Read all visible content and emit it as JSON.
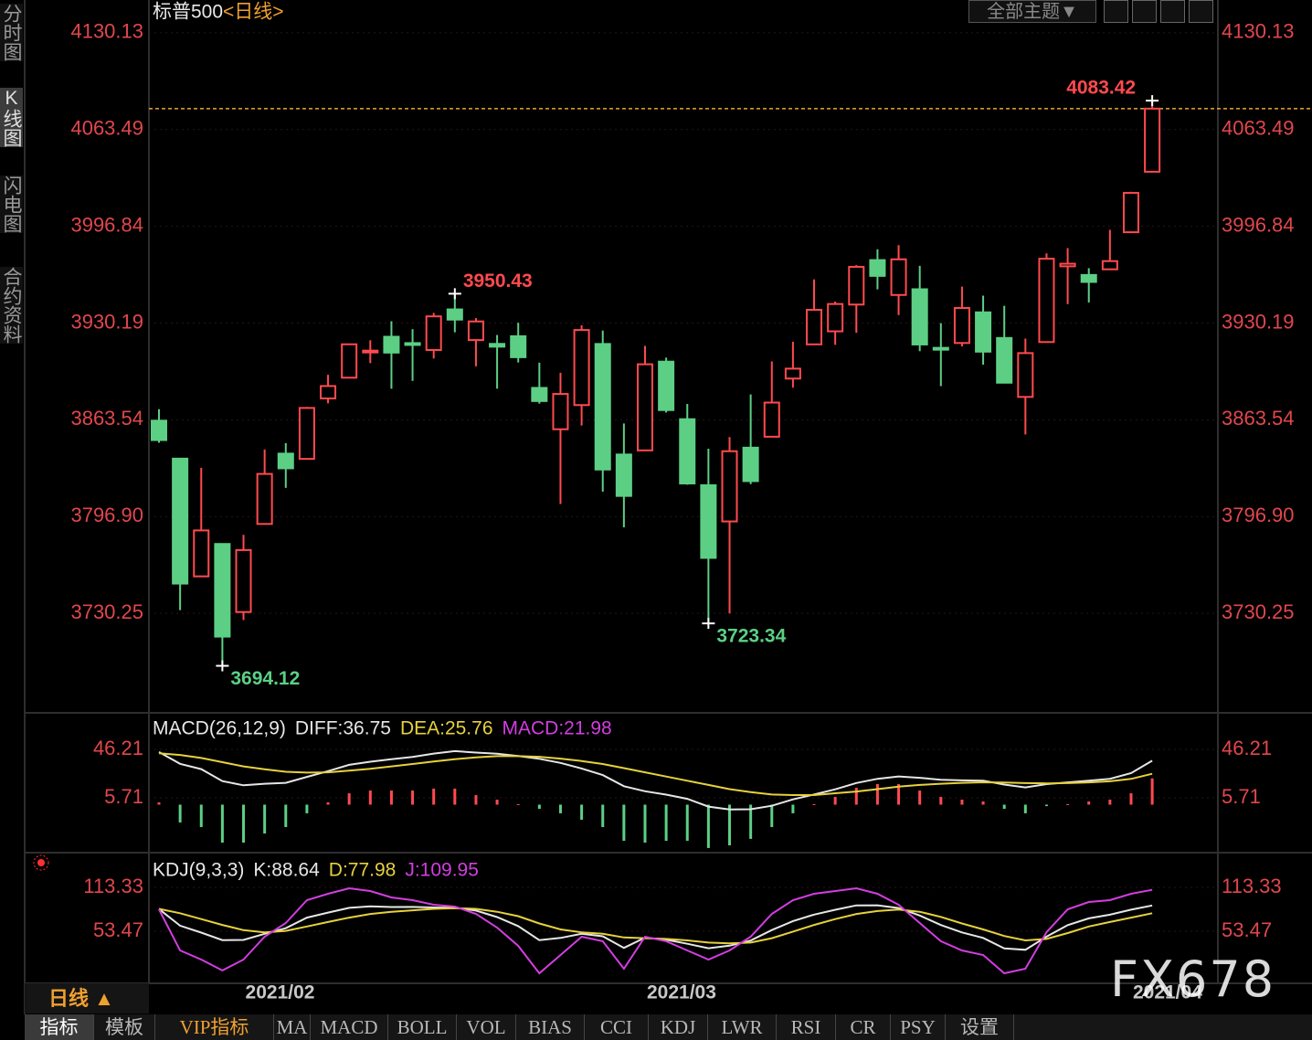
{
  "ui": {
    "side_tabs": [
      "分时图",
      "K线图",
      "闪电图",
      "合约资料"
    ],
    "selected_side_tab": 1,
    "theme_button": "全部主题▼",
    "period": "日线 ▲",
    "bottom_tabs": [
      "指标",
      "模板",
      "VIP指标",
      "MA",
      "MACD",
      "BOLL",
      "VOL",
      "BIAS",
      "CCI",
      "KDJ",
      "LWR",
      "RSI",
      "CR",
      "PSY",
      "设置"
    ],
    "selected_bottom_tab": 0,
    "watermark": "FX678"
  },
  "chart_data": [
    {
      "type": "candlestick",
      "title": "标普500",
      "subtitle": "<日线>",
      "categories": [
        null,
        null,
        null,
        null,
        "2021/02",
        null,
        null,
        null,
        null,
        null,
        null,
        null,
        null,
        null,
        null,
        null,
        null,
        null,
        null,
        null,
        null,
        null,
        null,
        "2021/03",
        null,
        null,
        null,
        null,
        null,
        null,
        null,
        null,
        null,
        null,
        null,
        null,
        null,
        null,
        null,
        null,
        null,
        null,
        null,
        null,
        null,
        null,
        "2021/04",
        null
      ],
      "open": [
        3862.96,
        3836.83,
        3755.75,
        3778.05,
        3731.17,
        3791.84,
        3840.27,
        3836.66,
        3878.3,
        3892.59,
        3910.49,
        3920.78,
        3916.4,
        3911.65,
        3939.61,
        3918.5,
        3915.86,
        3921.16,
        3885.55,
        3857.07,
        3873.71,
        3915.8,
        3839.66,
        3842.51,
        3903.64,
        3863.99,
        3818.53,
        3793.58,
        3844.39,
        3851.93,
        3891.99,
        3915.54,
        3924.52,
        3942.96,
        3973.59,
        3949.57,
        3953.5,
        3913.14,
        3916.48,
        3937.6,
        3919.93,
        3879.34,
        3917.12,
        3969.31,
        3963.34,
        3967.25,
        3992.78,
        4034.44
      ],
      "high": [
        3870.9,
        3836.83,
        3830.5,
        3778.05,
        3784.32,
        3843.09,
        3847.51,
        3872.42,
        3894.56,
        3915.77,
        3918.35,
        3931.5,
        3925.99,
        3937.23,
        3950.43,
        3933.61,
        3921.98,
        3930.41,
        3902.92,
        3895.98,
        3928.65,
        3925.02,
        3861.08,
        3914.5,
        3906.41,
        3874.47,
        3843.67,
        3851.69,
        3881.06,
        3903.76,
        3917.35,
        3960.27,
        3944.99,
        3970.08,
        3981.04,
        3983.87,
        3969.62,
        3930.12,
        3955.31,
        3949.13,
        3942.08,
        3919.54,
        3978.19,
        3981.83,
        3968.01,
        3994.41,
        4020.63,
        4083.42
      ],
      "low": [
        3847.78,
        3732.48,
        3755.75,
        3694.12,
        3725.62,
        3791.84,
        3816.68,
        3836.66,
        3874.93,
        3892.59,
        3902.64,
        3884.94,
        3890.39,
        3905.78,
        3923.85,
        3900.43,
        3885.03,
        3903.07,
        3874.71,
        3805.59,
        3859.6,
        3814.04,
        3789.54,
        3842.51,
        3868.57,
        3818.86,
        3723.34,
        3730.19,
        3819.25,
        3851.93,
        3885.73,
        3915.54,
        3915.21,
        3923.54,
        3953.44,
        3935.74,
        3910.86,
        3886.75,
        3914.16,
        3901.57,
        3888.87,
        3853.5,
        3917.12,
        3943.25,
        3944.35,
        3966.98,
        3992.78,
        4034.44
      ],
      "close": [
        3849.62,
        3750.77,
        3787.38,
        3714.24,
        3773.86,
        3826.31,
        3830.17,
        3871.74,
        3886.83,
        3915.59,
        3911.23,
        3909.88,
        3916.38,
        3934.83,
        3932.59,
        3931.33,
        3913.97,
        3906.71,
        3876.5,
        3881.37,
        3925.43,
        3829.34,
        3811.15,
        3901.82,
        3870.29,
        3819.72,
        3768.47,
        3841.94,
        3821.35,
        3875.44,
        3898.81,
        3939.34,
        3943.34,
        3968.94,
        3962.71,
        3974.12,
        3915.46,
        3913.1,
        3940.59,
        3910.52,
        3889.14,
        3909.52,
        3974.54,
        3971.09,
        3958.55,
        3972.89,
        4019.87,
        4077.91
      ],
      "up_color": "#ff4a4f",
      "down_color": "#5ccf85",
      "last_close_color": "#e8a33d",
      "ylim": [
        3663,
        4137
      ],
      "yticks": [
        4130.13,
        4063.49,
        3996.84,
        3930.19,
        3863.54,
        {
          "value": 3796.9,
          "label": "3796.90"
        },
        3730.25
      ],
      "grid": true,
      "annotations": [
        {
          "x": 47,
          "y": 4083.42,
          "color": "#ff4a4f",
          "position": "above"
        },
        {
          "x": 14,
          "y": 3950.43,
          "color": "#ff4a4f",
          "position": "above"
        },
        {
          "x": 26,
          "y": 3723.34,
          "color": "#5ccf85",
          "position": "below"
        },
        {
          "x": 3,
          "y": 3694.12,
          "color": "#5ccf85",
          "position": "below"
        }
      ]
    },
    {
      "type": "line",
      "title": "MACD(26,12,9)",
      "up_color": "#ff4a4f",
      "down_color": "#5ccf85",
      "ylim": [
        -37.8,
        72.9
      ],
      "yticks": [
        46.21,
        5.71
      ],
      "grid": true,
      "series": [
        {
          "name": "DIFF:36.75",
          "color": "#e6e6e6",
          "values": [
            44,
            34.1,
            29.7,
            19.7,
            16.2,
            17.5,
            18.2,
            23.2,
            28,
            33.3,
            35.9,
            37.9,
            39.9,
            42.7,
            44.7,
            43.5,
            42.6,
            40.7,
            38.3,
            34.9,
            30.2,
            24.7,
            15.4,
            11.2,
            8.4,
            4.9,
            -1.6,
            -4,
            -3.8,
            -0.9,
            4.4,
            8.5,
            12.8,
            18.1,
            21.6,
            23.6,
            22.4,
            20.8,
            20.3,
            20.1,
            16.8,
            14.4,
            17.2,
            18.6,
            20,
            21.6,
            26.3,
            36.75
          ]
        },
        {
          "name": "DEA:25.76",
          "color": "#e6d13c",
          "values": [
            43,
            41.5,
            39,
            35.5,
            32,
            29.5,
            27.5,
            26.8,
            27,
            28.5,
            30,
            32,
            34,
            36,
            38,
            39.5,
            40.5,
            40.5,
            40,
            38.5,
            36.5,
            34,
            30.5,
            27,
            23.5,
            20,
            16.5,
            13,
            10.5,
            8.5,
            8,
            8,
            9.5,
            11,
            13,
            15,
            16.5,
            17.5,
            18.2,
            18.7,
            18.5,
            18,
            17.8,
            18,
            18.6,
            19.5,
            21.5,
            25.76
          ]
        },
        {
          "name": "MACD:21.98",
          "color": "#d23ee0",
          "type": "bar",
          "values": [
            1.9,
            -14.9,
            -18.7,
            -31.7,
            -31.7,
            -24.1,
            -18.7,
            -7.2,
            1.9,
            9.5,
            11.8,
            11.8,
            11.8,
            13.4,
            13.4,
            8,
            4.2,
            0.4,
            -3.5,
            -7.2,
            -12.6,
            -18.7,
            -30.2,
            -31.7,
            -30.2,
            -30.2,
            -36.2,
            -34,
            -28.6,
            -18.7,
            -7.2,
            0.4,
            6.5,
            14.1,
            17.2,
            17.2,
            11.8,
            6.5,
            4.2,
            2.7,
            -3.5,
            -7.2,
            -1.2,
            0.4,
            2.7,
            4.2,
            9.5,
            21.98
          ]
        }
      ]
    },
    {
      "type": "line",
      "title": "KDJ(9,3,3)",
      "ylim": [
        -16.4,
        152
      ],
      "yticks": [
        113.33,
        53.47
      ],
      "grid": true,
      "series": [
        {
          "name": "K:88.64",
          "color": "#e6e6e6",
          "values": [
            83.8,
            61.1,
            51.6,
            41.3,
            41.6,
            50,
            57.6,
            72,
            78.9,
            85.4,
            87.4,
            86.5,
            86.6,
            85.9,
            85.7,
            81.7,
            72.8,
            60.5,
            41.4,
            44.3,
            50,
            46.6,
            30.8,
            44.7,
            41.9,
            36.4,
            30.3,
            33.8,
            40.7,
            55.1,
            67.3,
            76.2,
            82.8,
            88.7,
            88.9,
            85.2,
            74.9,
            61.9,
            51.8,
            44.3,
            30,
            28.1,
            46.1,
            61.8,
            71.1,
            76,
            82.9,
            88.64
          ]
        },
        {
          "name": "D:77.98",
          "color": "#e6d13c",
          "values": [
            84,
            78,
            70,
            62,
            55,
            52,
            54,
            60,
            66,
            72,
            77,
            80,
            82,
            84,
            85,
            84,
            80,
            74,
            64,
            56,
            52,
            50,
            45,
            44,
            43,
            41,
            38,
            37,
            38,
            44,
            53,
            62,
            70,
            77,
            81,
            83,
            80,
            73,
            64,
            56,
            47,
            41,
            43,
            51,
            60,
            66,
            72,
            77.98
          ]
        },
        {
          "name": "J:109.95",
          "color": "#d23ee0",
          "values": [
            83.4,
            27.3,
            14.8,
            0,
            14.8,
            46,
            64.7,
            95.9,
            104.6,
            112.1,
            108.3,
            99.6,
            95.9,
            89.6,
            87.1,
            77.2,
            58.5,
            33.5,
            -3.9,
            21,
            46,
            39.8,
            2.3,
            46,
            39.8,
            27.3,
            14.8,
            27.3,
            46,
            77.2,
            95.9,
            104.6,
            108.3,
            112.1,
            104.6,
            89.6,
            64.7,
            39.8,
            27.3,
            21,
            -3.9,
            2.3,
            52.2,
            83.4,
            93.4,
            95.9,
            104.6,
            109.95
          ]
        }
      ]
    }
  ]
}
